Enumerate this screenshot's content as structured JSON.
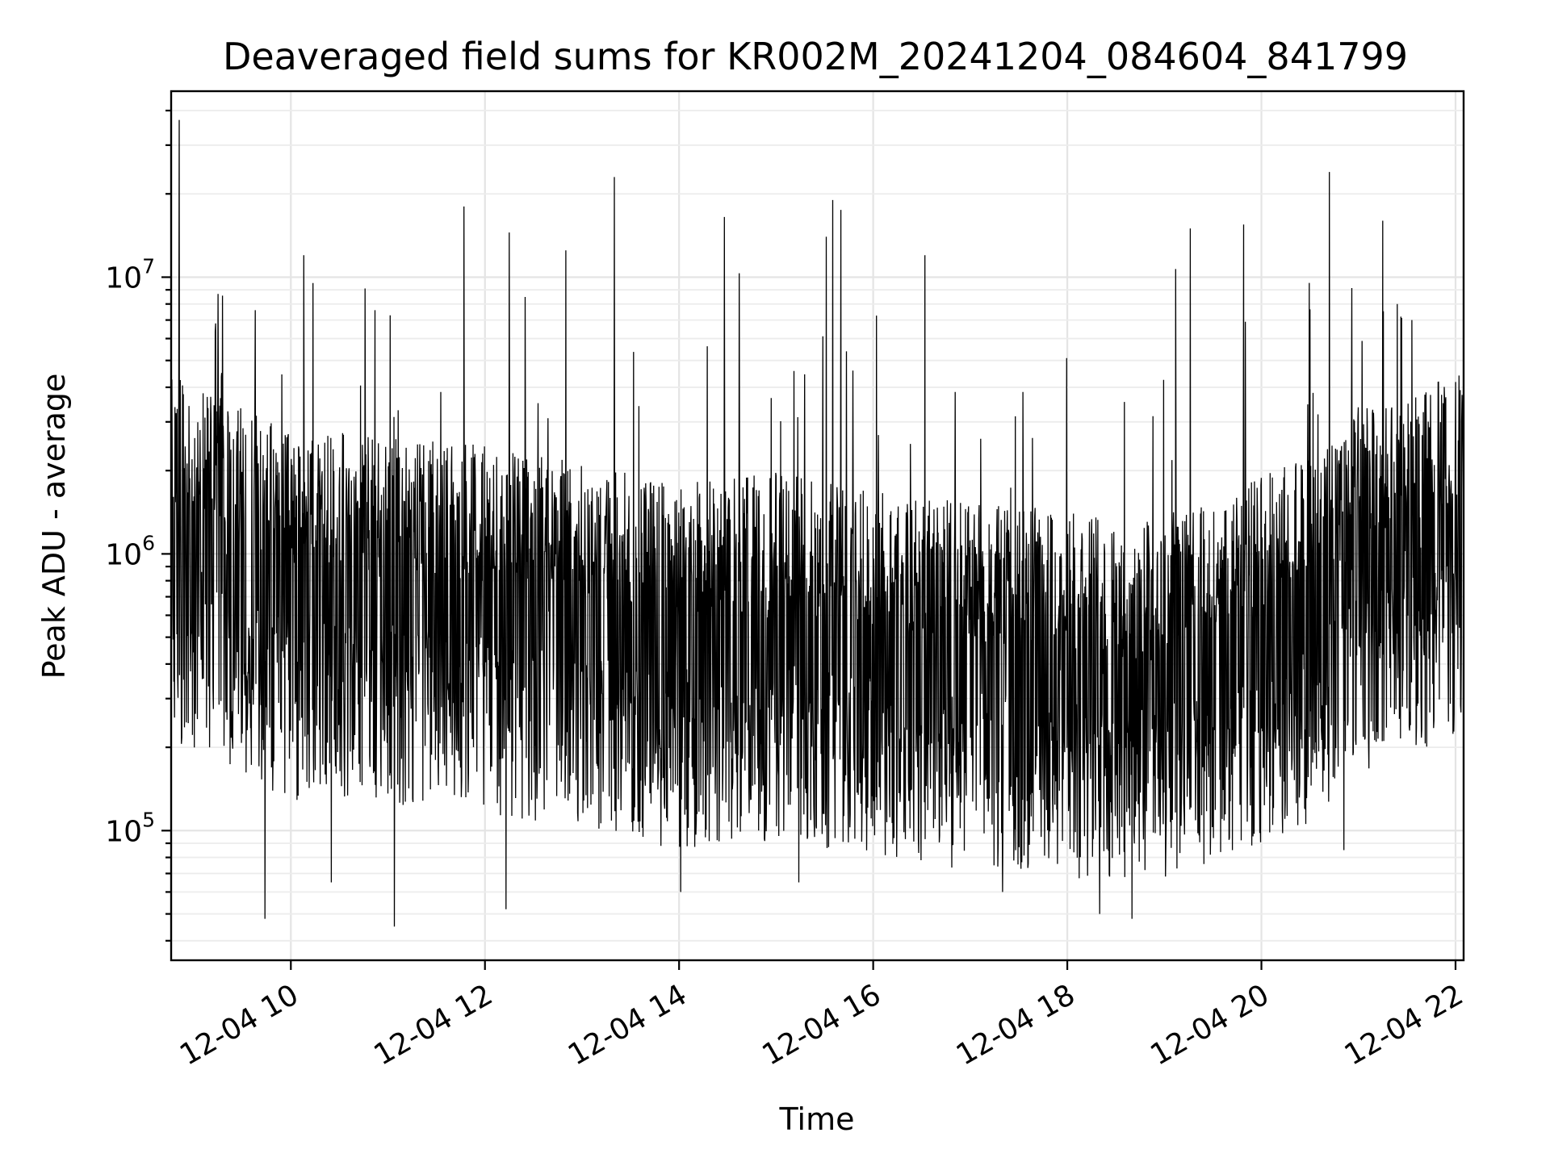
{
  "chart_data": {
    "type": "line",
    "title": "Deaveraged field sums for KR002M_20241204_084604_841799",
    "xlabel": "Time",
    "ylabel": "Peak ADU - average",
    "x_date": "2024-12-04",
    "x_tick_labels": [
      "12-04 10",
      "12-04 12",
      "12-04 14",
      "12-04 16",
      "12-04 18",
      "12-04 20",
      "12-04 22"
    ],
    "y_tick_labels": [
      {
        "base": "10",
        "exp": "5",
        "value": 100000
      },
      {
        "base": "10",
        "exp": "6",
        "value": 1000000
      },
      {
        "base": "10",
        "exp": "7",
        "value": 10000000
      }
    ],
    "yscale": "log",
    "xlim": [
      "2024-12-04T08:46",
      "2024-12-04T22:05"
    ],
    "ylim": [
      34000,
      47000000
    ],
    "grid": true,
    "series_color": "#000000",
    "series": [
      {
        "x_start": "2024-12-04T08:46",
        "x_end": "2024-12-04T22:05",
        "baseline_profile": [
          [
            "2024-12-04T08:46",
            1150000
          ],
          [
            "2024-12-04T09:10",
            1100000
          ],
          [
            "2024-12-04T09:30",
            900000
          ],
          [
            "2024-12-04T10:00",
            720000
          ],
          [
            "2024-12-04T11:00",
            700000
          ],
          [
            "2024-12-04T12:00",
            650000
          ],
          [
            "2024-12-04T13:00",
            560000
          ],
          [
            "2024-12-04T14:00",
            480000
          ],
          [
            "2024-12-04T15:00",
            520000
          ],
          [
            "2024-12-04T16:00",
            450000
          ],
          [
            "2024-12-04T17:00",
            400000
          ],
          [
            "2024-12-04T18:00",
            380000
          ],
          [
            "2024-12-04T18:40",
            340000
          ],
          [
            "2024-12-04T19:30",
            420000
          ],
          [
            "2024-12-04T20:30",
            600000
          ],
          [
            "2024-12-04T21:00",
            900000
          ],
          [
            "2024-12-04T21:30",
            1000000
          ],
          [
            "2024-12-04T22:05",
            1250000
          ]
        ],
        "peaks": [
          [
            "2024-12-04T08:51",
            37000000
          ],
          [
            "2024-12-04T09:15",
            8700000
          ],
          [
            "2024-12-04T09:38",
            7600000
          ],
          [
            "2024-12-04T10:08",
            12000000
          ],
          [
            "2024-12-04T10:52",
            7600000
          ],
          [
            "2024-12-04T11:47",
            18000000
          ],
          [
            "2024-12-04T12:15",
            14500000
          ],
          [
            "2024-12-04T12:50",
            12500000
          ],
          [
            "2024-12-04T13:20",
            23000000
          ],
          [
            "2024-12-04T14:28",
            16500000
          ],
          [
            "2024-12-04T15:31",
            14000000
          ],
          [
            "2024-12-04T15:35",
            19000000
          ],
          [
            "2024-12-04T15:40",
            17500000
          ],
          [
            "2024-12-04T16:32",
            12000000
          ],
          [
            "2024-12-04T19:07",
            10700000
          ],
          [
            "2024-12-04T19:16",
            15000000
          ],
          [
            "2024-12-04T19:49",
            15500000
          ],
          [
            "2024-12-04T20:42",
            24000000
          ],
          [
            "2024-12-04T21:15",
            16000000
          ],
          [
            "2024-12-04T21:24",
            8000000
          ],
          [
            "2024-12-04T21:33",
            7000000
          ]
        ],
        "dips": [
          [
            "2024-12-04T09:44",
            48000
          ],
          [
            "2024-12-04T10:25",
            65000
          ],
          [
            "2024-12-04T11:04",
            45000
          ],
          [
            "2024-12-04T12:13",
            52000
          ],
          [
            "2024-12-04T14:01",
            60000
          ],
          [
            "2024-12-04T15:14",
            65000
          ],
          [
            "2024-12-04T17:20",
            60000
          ],
          [
            "2024-12-04T18:20",
            50000
          ],
          [
            "2024-12-04T18:40",
            48000
          ],
          [
            "2024-12-04T20:51",
            85000
          ]
        ]
      }
    ]
  }
}
